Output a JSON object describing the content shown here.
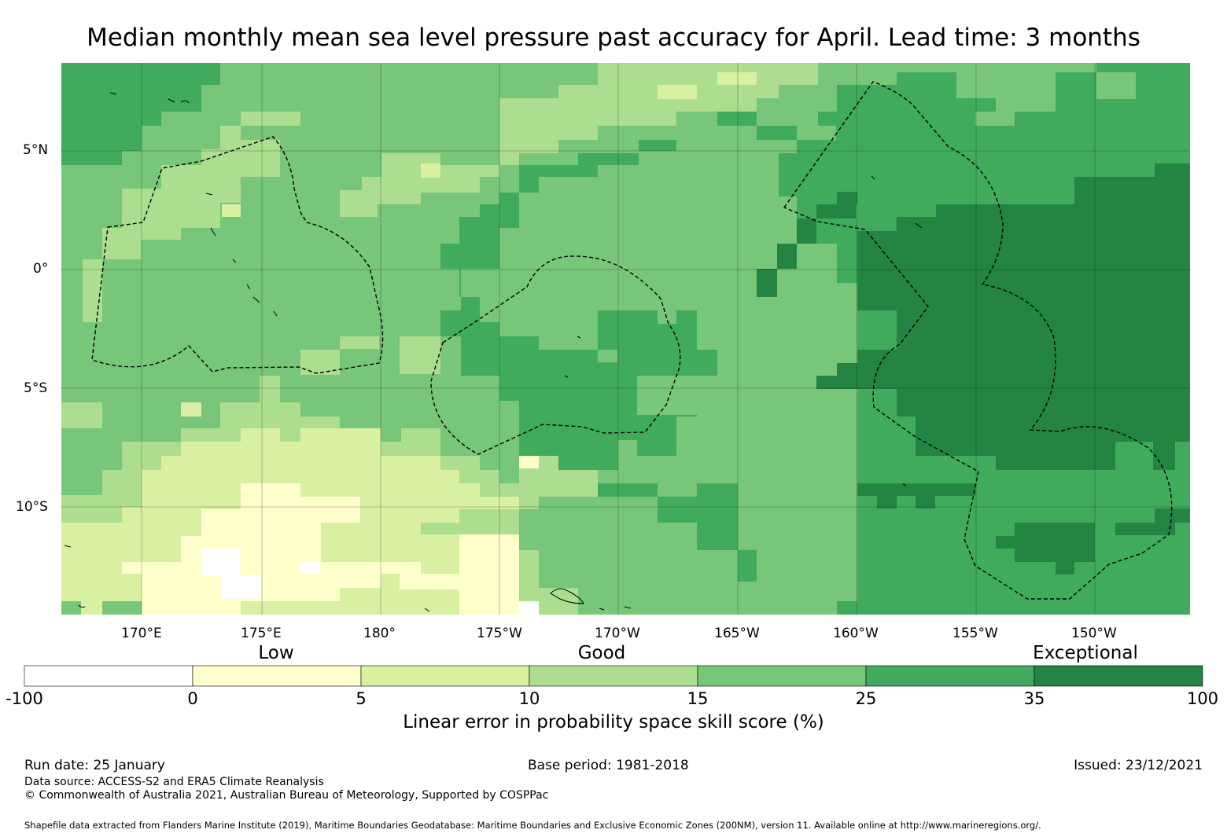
{
  "title": "Median monthly mean sea level pressure past accuracy for April. Lead time: 3 months",
  "map": {
    "lon_ticks": [
      "170°E",
      "175°E",
      "180°",
      "175°W",
      "170°W",
      "165°W",
      "160°W",
      "155°W",
      "150°W"
    ],
    "lat_ticks": [
      "5°N",
      "0°",
      "5°S",
      "10°S"
    ],
    "colors": [
      "#ffffff",
      "#ffffcc",
      "#d9f0a3",
      "#addd8e",
      "#78c679",
      "#41ab5d",
      "#238443"
    ]
  },
  "legend": {
    "categories": [
      "Low",
      "Good",
      "Exceptional"
    ],
    "ticks": [
      "-100",
      "0",
      "5",
      "10",
      "15",
      "25",
      "35",
      "100"
    ],
    "label": "Linear error in probability space skill score (%)"
  },
  "footer": {
    "run_date": "Run date: 25 January",
    "base_period": "Base period: 1981-2018",
    "issued": "Issued: 23/12/2021",
    "data_source": "Data source: ACCESS-S2 and ERA5 Climate Reanalysis",
    "copyright": "© Commonwealth of Australia 2021, Australian Bureau of Meteorology, Supported by COSPPac",
    "shapefile": "Shapefile data extracted from Flanders Marine Institute (2019), Maritime Boundaries Geodatabase: Maritime Boundaries and Exclusive Economic Zones (200NM), version 11. Available online at http://www.marineregions.org/."
  }
}
